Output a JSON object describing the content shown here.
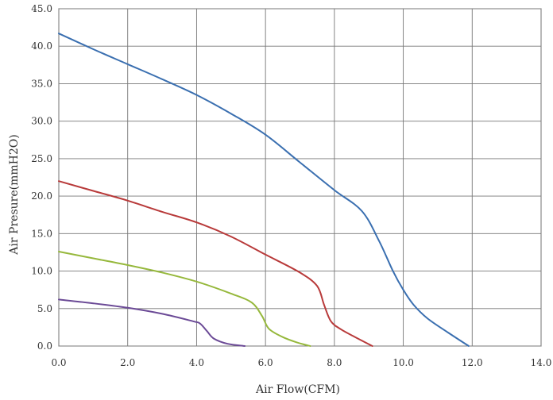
{
  "chart_data": {
    "type": "line",
    "xlabel": "Air Flow(CFM)",
    "ylabel": "Air Presure(mmH2O)",
    "xlim": [
      0,
      14
    ],
    "ylim": [
      0,
      45
    ],
    "x_ticks": [
      "0.0",
      "2.0",
      "4.0",
      "6.0",
      "8.0",
      "10.0",
      "12.0",
      "14.0"
    ],
    "y_ticks": [
      "0.0",
      "5.0",
      "10.0",
      "15.0",
      "20.0",
      "25.0",
      "30.0",
      "35.0",
      "40.0",
      "45.0"
    ],
    "grid": true,
    "series": [
      {
        "color": "#3a6fb0",
        "points": [
          [
            0.0,
            41.7
          ],
          [
            1.0,
            39.6
          ],
          [
            2.0,
            37.6
          ],
          [
            3.0,
            35.6
          ],
          [
            4.0,
            33.5
          ],
          [
            5.0,
            31.0
          ],
          [
            6.0,
            28.2
          ],
          [
            7.0,
            24.5
          ],
          [
            8.0,
            20.8
          ],
          [
            8.8,
            18.0
          ],
          [
            9.3,
            14.0
          ],
          [
            9.7,
            10.0
          ],
          [
            10.0,
            7.5
          ],
          [
            10.3,
            5.5
          ],
          [
            10.7,
            3.7
          ],
          [
            11.3,
            1.8
          ],
          [
            11.9,
            0.0
          ]
        ]
      },
      {
        "color": "#b83a3a",
        "points": [
          [
            0.0,
            22.0
          ],
          [
            1.0,
            20.7
          ],
          [
            2.0,
            19.4
          ],
          [
            3.0,
            17.9
          ],
          [
            4.0,
            16.5
          ],
          [
            5.0,
            14.6
          ],
          [
            6.0,
            12.2
          ],
          [
            7.0,
            9.8
          ],
          [
            7.5,
            8.0
          ],
          [
            7.7,
            5.5
          ],
          [
            7.9,
            3.3
          ],
          [
            8.2,
            2.2
          ],
          [
            8.6,
            1.2
          ],
          [
            9.1,
            0.0
          ]
        ]
      },
      {
        "color": "#96b83c",
        "points": [
          [
            0.0,
            12.6
          ],
          [
            1.0,
            11.7
          ],
          [
            2.0,
            10.8
          ],
          [
            3.0,
            9.8
          ],
          [
            4.0,
            8.6
          ],
          [
            5.0,
            7.0
          ],
          [
            5.6,
            5.8
          ],
          [
            5.9,
            4.0
          ],
          [
            6.1,
            2.3
          ],
          [
            6.5,
            1.2
          ],
          [
            6.9,
            0.5
          ],
          [
            7.3,
            0.0
          ]
        ]
      },
      {
        "color": "#6b4a96",
        "points": [
          [
            0.0,
            6.2
          ],
          [
            1.0,
            5.7
          ],
          [
            2.0,
            5.1
          ],
          [
            3.0,
            4.3
          ],
          [
            3.9,
            3.3
          ],
          [
            4.1,
            3.0
          ],
          [
            4.3,
            2.0
          ],
          [
            4.5,
            1.0
          ],
          [
            4.9,
            0.3
          ],
          [
            5.4,
            0.0
          ]
        ]
      }
    ]
  }
}
